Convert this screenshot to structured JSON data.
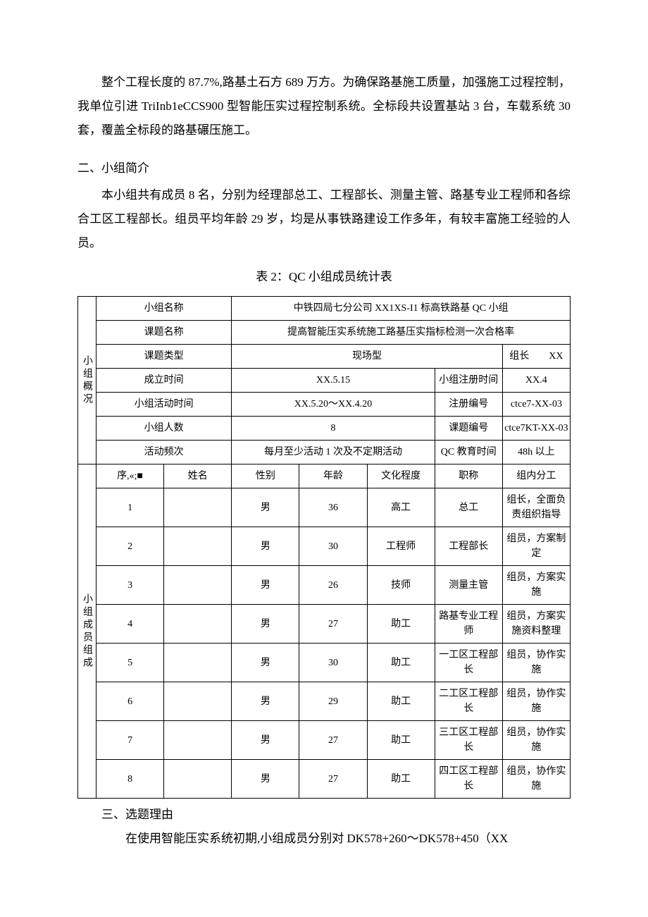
{
  "intro_para": "整个工程长度的 87.7%,路基土石方 689 万方。为确保路基施工质量，加强施工过程控制，我单位引进 TriInb1eCCS900 型智能压实过程控制系统。全标段共设置基站 3 台，车载系统 30 套，覆盖全标段的路基碾压施工。",
  "sec2_heading": "二、小组简介",
  "sec2_para": "本小组共有成员 8 名，分别为经理部总工、工程部长、测量主管、路基专业工程师和各综合工区工程部长。组员平均年龄 29 岁，均是从事铁路建设工作多年，有较丰富施工经验的人员。",
  "table_caption": "表 2：QC 小组成员统计表",
  "overview": {
    "side_label": "小组概况",
    "group_name_label": "小组名称",
    "group_name": "中铁四局七分公司 XX1XS-I1 标高铁路基 QC 小组",
    "topic_name_label": "课题名称",
    "topic_name": "提高智能压实系统施工路基压实指标检测一次合格率",
    "topic_type_label": "课题类型",
    "topic_type": "现场型",
    "leader_label": "组长",
    "leader_value": "XX",
    "founded_label": "成立时间",
    "founded": "XX.5.15",
    "reg_time_label": "小组注册时间",
    "reg_time": "XX.4",
    "activity_time_label": "小组活动时间",
    "activity_time": "XX.5.20～XX.4.20",
    "reg_no_label": "注册编号",
    "reg_no": "ctce7-XX-03",
    "member_count_label": "小组人数",
    "member_count": "8",
    "topic_no_label": "课题编号",
    "topic_no": "ctce7KT-XX-03",
    "freq_label": "活动频次",
    "freq": "每月至少活动 1 次及不定期活动",
    "edu_label": "QC 教育时间",
    "edu": "48h 以上"
  },
  "members": {
    "side_label": "小组成员组成",
    "head_seq": "序,«;■",
    "head_name": "姓名",
    "head_sex": "性别",
    "head_age": "年龄",
    "head_edu": "文化程度",
    "head_title": "职称",
    "head_role": "组内分工",
    "rows": [
      {
        "seq": "1",
        "name": "",
        "sex": "男",
        "age": "36",
        "edu": "高工",
        "title": "总工",
        "role": "组长，全面负责组织指导"
      },
      {
        "seq": "2",
        "name": "",
        "sex": "男",
        "age": "30",
        "edu": "工程师",
        "title": "工程部长",
        "role": "组员，方案制定"
      },
      {
        "seq": "3",
        "name": "",
        "sex": "男",
        "age": "26",
        "edu": "技师",
        "title": "测量主管",
        "role": "组员，方案实施"
      },
      {
        "seq": "4",
        "name": "",
        "sex": "男",
        "age": "27",
        "edu": "助工",
        "title": "路基专业工程师",
        "role": "组员，方案实施资料整理"
      },
      {
        "seq": "5",
        "name": "",
        "sex": "男",
        "age": "30",
        "edu": "助工",
        "title": "一工区工程部长",
        "role": "组员，协作实施"
      },
      {
        "seq": "6",
        "name": "",
        "sex": "男",
        "age": "29",
        "edu": "助工",
        "title": "二工区工程部长",
        "role": "组员，协作实施"
      },
      {
        "seq": "7",
        "name": "",
        "sex": "男",
        "age": "27",
        "edu": "助工",
        "title": "三工区工程部长",
        "role": "组员，协作实施"
      },
      {
        "seq": "8",
        "name": "",
        "sex": "男",
        "age": "27",
        "edu": "助工",
        "title": "四工区工程部长",
        "role": "组员，协作实施"
      }
    ]
  },
  "sec3_heading": "三、选题理由",
  "sec3_para": "在使用智能压实系统初期,小组成员分别对 DK578+260～DK578+450（XX"
}
